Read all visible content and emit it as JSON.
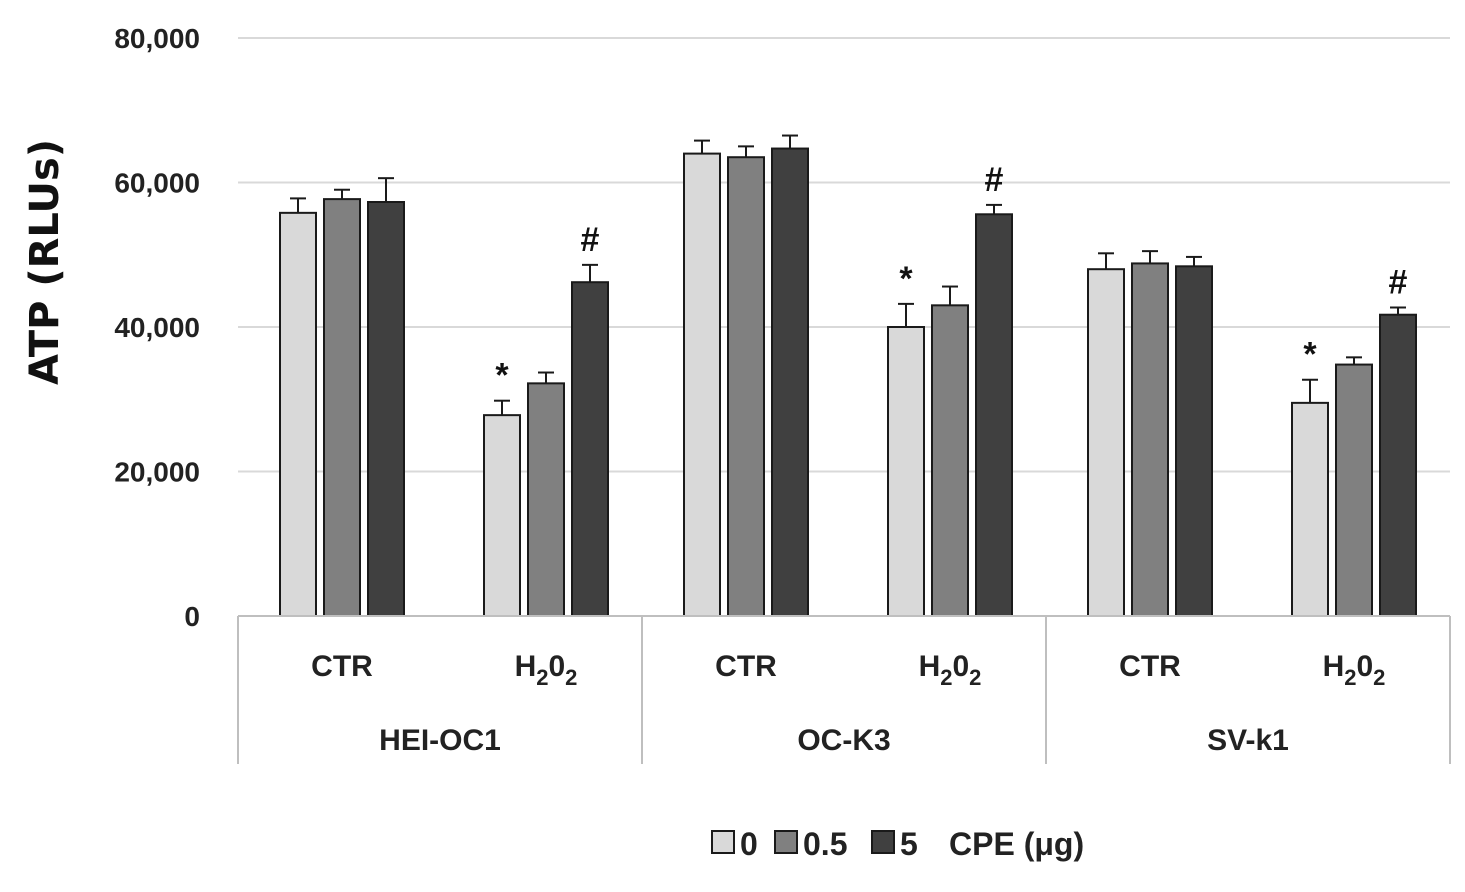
{
  "chart_data": {
    "type": "bar",
    "ylabel": "ATP (RLUs)",
    "ylim": [
      0,
      80000
    ],
    "yticks": [
      0,
      20000,
      40000,
      60000,
      80000
    ],
    "ytick_labels": [
      "0",
      "20,000",
      "40,000",
      "60,000",
      "80,000"
    ],
    "grid": true,
    "groups": [
      {
        "name": "HEI-OC1",
        "categories": [
          {
            "main": "CTR",
            "sub": "",
            "tail": ""
          },
          {
            "main": "H",
            "sub": "2",
            "mid": "0",
            "sub2": "2"
          }
        ]
      },
      {
        "name": "OC-K3",
        "categories": [
          {
            "main": "CTR",
            "sub": "",
            "tail": ""
          },
          {
            "main": "H",
            "sub": "2",
            "mid": "0",
            "sub2": "2"
          }
        ]
      },
      {
        "name": "SV-k1",
        "categories": [
          {
            "main": "CTR",
            "sub": "",
            "tail": ""
          },
          {
            "main": "H",
            "sub": "2",
            "mid": "0",
            "sub2": "2"
          }
        ]
      }
    ],
    "series": [
      {
        "name": "0",
        "color": "#d9d9d9",
        "values": [
          55800,
          27800,
          64000,
          40000,
          48000,
          29500
        ],
        "errors": [
          2000,
          2000,
          1800,
          3200,
          2200,
          3200
        ]
      },
      {
        "name": "0.5",
        "color": "#808080",
        "values": [
          57700,
          32200,
          63500,
          43000,
          48800,
          34800
        ],
        "errors": [
          1300,
          1500,
          1500,
          2600,
          1700,
          1000
        ]
      },
      {
        "name": "5",
        "color": "#404040",
        "values": [
          57300,
          46200,
          64700,
          55600,
          48400,
          41700
        ],
        "errors": [
          3300,
          2400,
          1800,
          1300,
          1300,
          1000
        ]
      }
    ],
    "annotations": [
      {
        "bar_index": 1,
        "series": 0,
        "text": "*"
      },
      {
        "bar_index": 1,
        "series": 2,
        "text": "#"
      },
      {
        "bar_index": 3,
        "series": 0,
        "text": "*"
      },
      {
        "bar_index": 3,
        "series": 2,
        "text": "#"
      },
      {
        "bar_index": 5,
        "series": 0,
        "text": "*"
      },
      {
        "bar_index": 5,
        "series": 2,
        "text": "#"
      }
    ],
    "legend": {
      "placement": "bottom-center",
      "title": "CPE (μg)"
    }
  }
}
